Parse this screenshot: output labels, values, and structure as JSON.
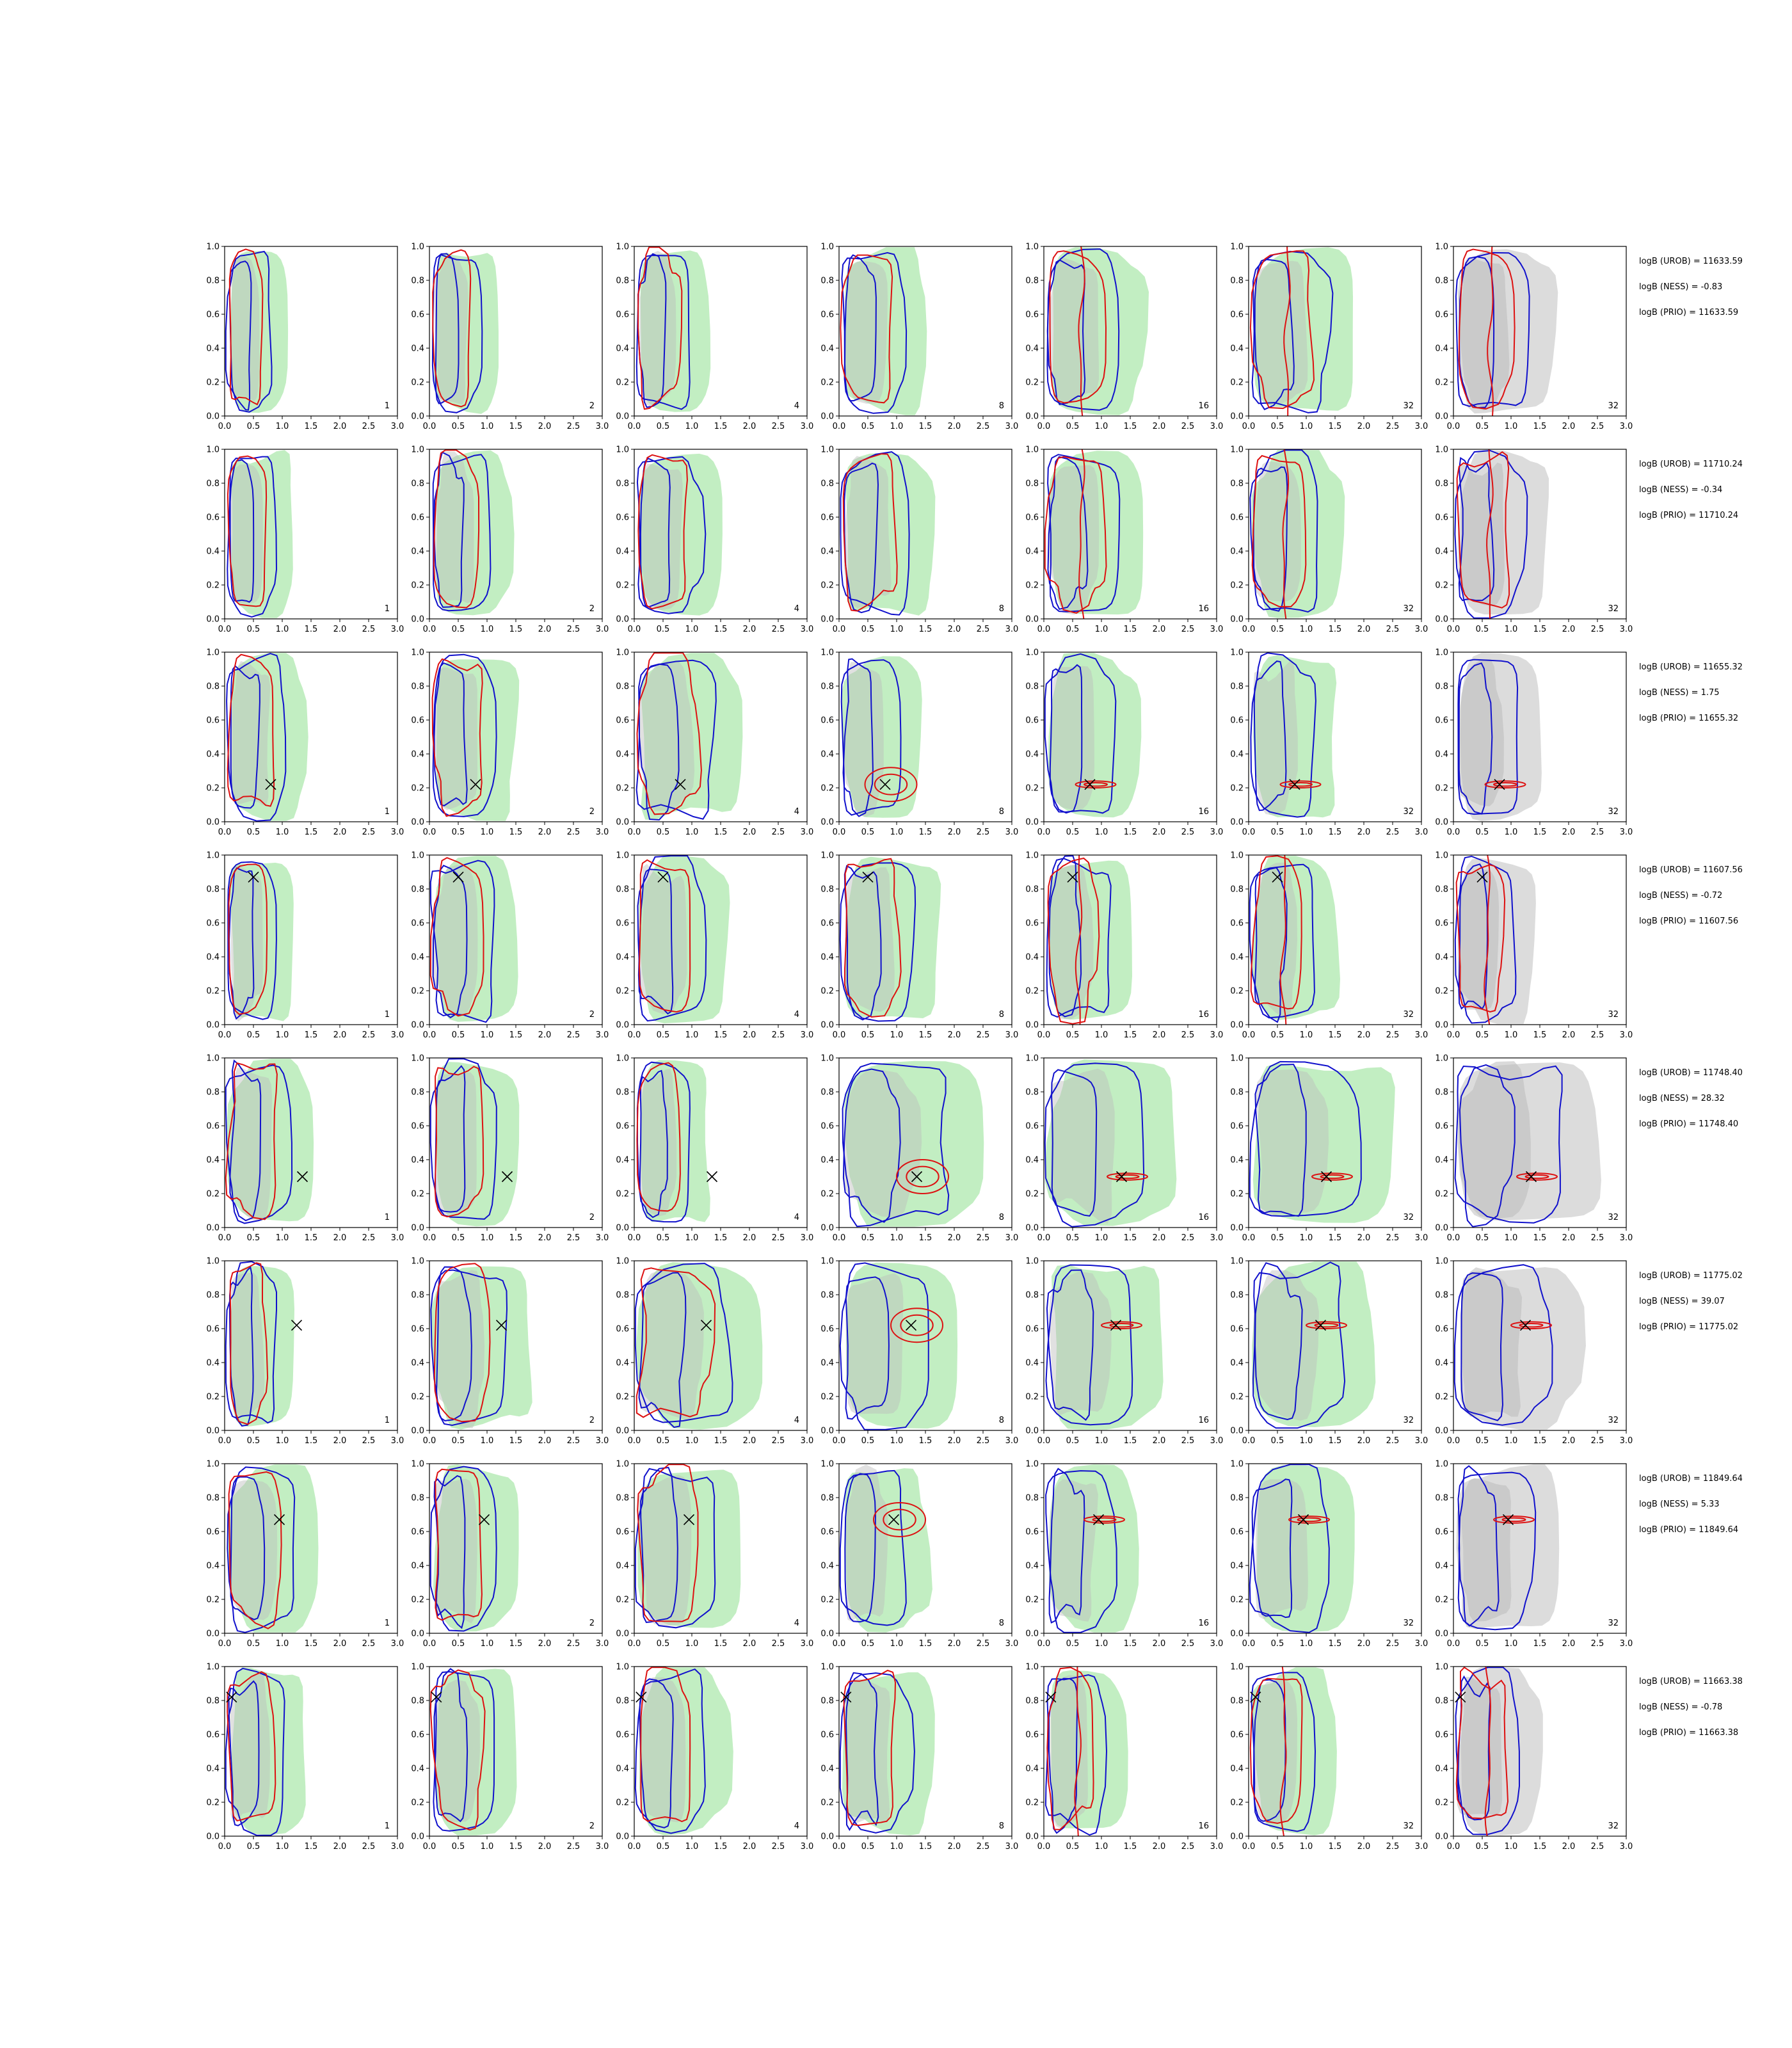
{
  "figure": {
    "columns": [
      "1",
      "2",
      "4",
      "8",
      "16",
      "32",
      "32"
    ],
    "x_ticks": [
      "0.0",
      "0.5",
      "1.0",
      "1.5",
      "2.0",
      "2.5",
      "3.0"
    ],
    "y_ticks": [
      "0.0",
      "0.2",
      "0.4",
      "0.6",
      "0.8",
      "1.0"
    ]
  },
  "colors": {
    "red": "#dd1111",
    "blue": "#1111cc",
    "green_fill": "#c2eec2",
    "grey_fill": "#bcbcbc",
    "grey_fill_light": "#dcdcdc"
  },
  "chart_data": [
    {
      "type": "contour",
      "row": 1,
      "xlim": [
        0,
        3
      ],
      "ylim": [
        0,
        1
      ],
      "marker": null,
      "annotations": [
        "logB (UROB) = 11633.59",
        "logB (NESS) = -0.83",
        "logB (PRIO) = 11633.59"
      ]
    },
    {
      "type": "contour",
      "row": 2,
      "xlim": [
        0,
        3
      ],
      "ylim": [
        0,
        1
      ],
      "marker": null,
      "annotations": [
        "logB (UROB) = 11710.24",
        "logB (NESS) = -0.34",
        "logB (PRIO) = 11710.24"
      ]
    },
    {
      "type": "contour",
      "row": 3,
      "xlim": [
        0,
        3
      ],
      "ylim": [
        0,
        1
      ],
      "marker": [
        0.8,
        0.22
      ],
      "annotations": [
        "logB (UROB) = 11655.32",
        "logB (NESS) = 1.75",
        "logB (PRIO) = 11655.32"
      ]
    },
    {
      "type": "contour",
      "row": 4,
      "xlim": [
        0,
        3
      ],
      "ylim": [
        0,
        1
      ],
      "marker": [
        0.5,
        0.87
      ],
      "annotations": [
        "logB (UROB) = 11607.56",
        "logB (NESS) = -0.72",
        "logB (PRIO) = 11607.56"
      ]
    },
    {
      "type": "contour",
      "row": 5,
      "xlim": [
        0,
        3
      ],
      "ylim": [
        0,
        1
      ],
      "marker": [
        1.35,
        0.3
      ],
      "annotations": [
        "logB (UROB) = 11748.40",
        "logB (NESS) = 28.32",
        "logB (PRIO) = 11748.40"
      ]
    },
    {
      "type": "contour",
      "row": 6,
      "xlim": [
        0,
        3
      ],
      "ylim": [
        0,
        1
      ],
      "marker": [
        1.25,
        0.62
      ],
      "annotations": [
        "logB (UROB) = 11775.02",
        "logB (NESS) = 39.07",
        "logB (PRIO) = 11775.02"
      ]
    },
    {
      "type": "contour",
      "row": 7,
      "xlim": [
        0,
        3
      ],
      "ylim": [
        0,
        1
      ],
      "marker": [
        0.95,
        0.67
      ],
      "annotations": [
        "logB (UROB) = 11849.64",
        "logB (NESS) = 5.33",
        "logB (PRIO) = 11849.64"
      ]
    },
    {
      "type": "contour",
      "row": 8,
      "xlim": [
        0,
        3
      ],
      "ylim": [
        0,
        1
      ],
      "marker": [
        0.12,
        0.82
      ],
      "annotations": [
        "logB (UROB) = 11663.38",
        "logB (NESS) = -0.78",
        "logB (PRIO) = 11663.38"
      ]
    }
  ]
}
